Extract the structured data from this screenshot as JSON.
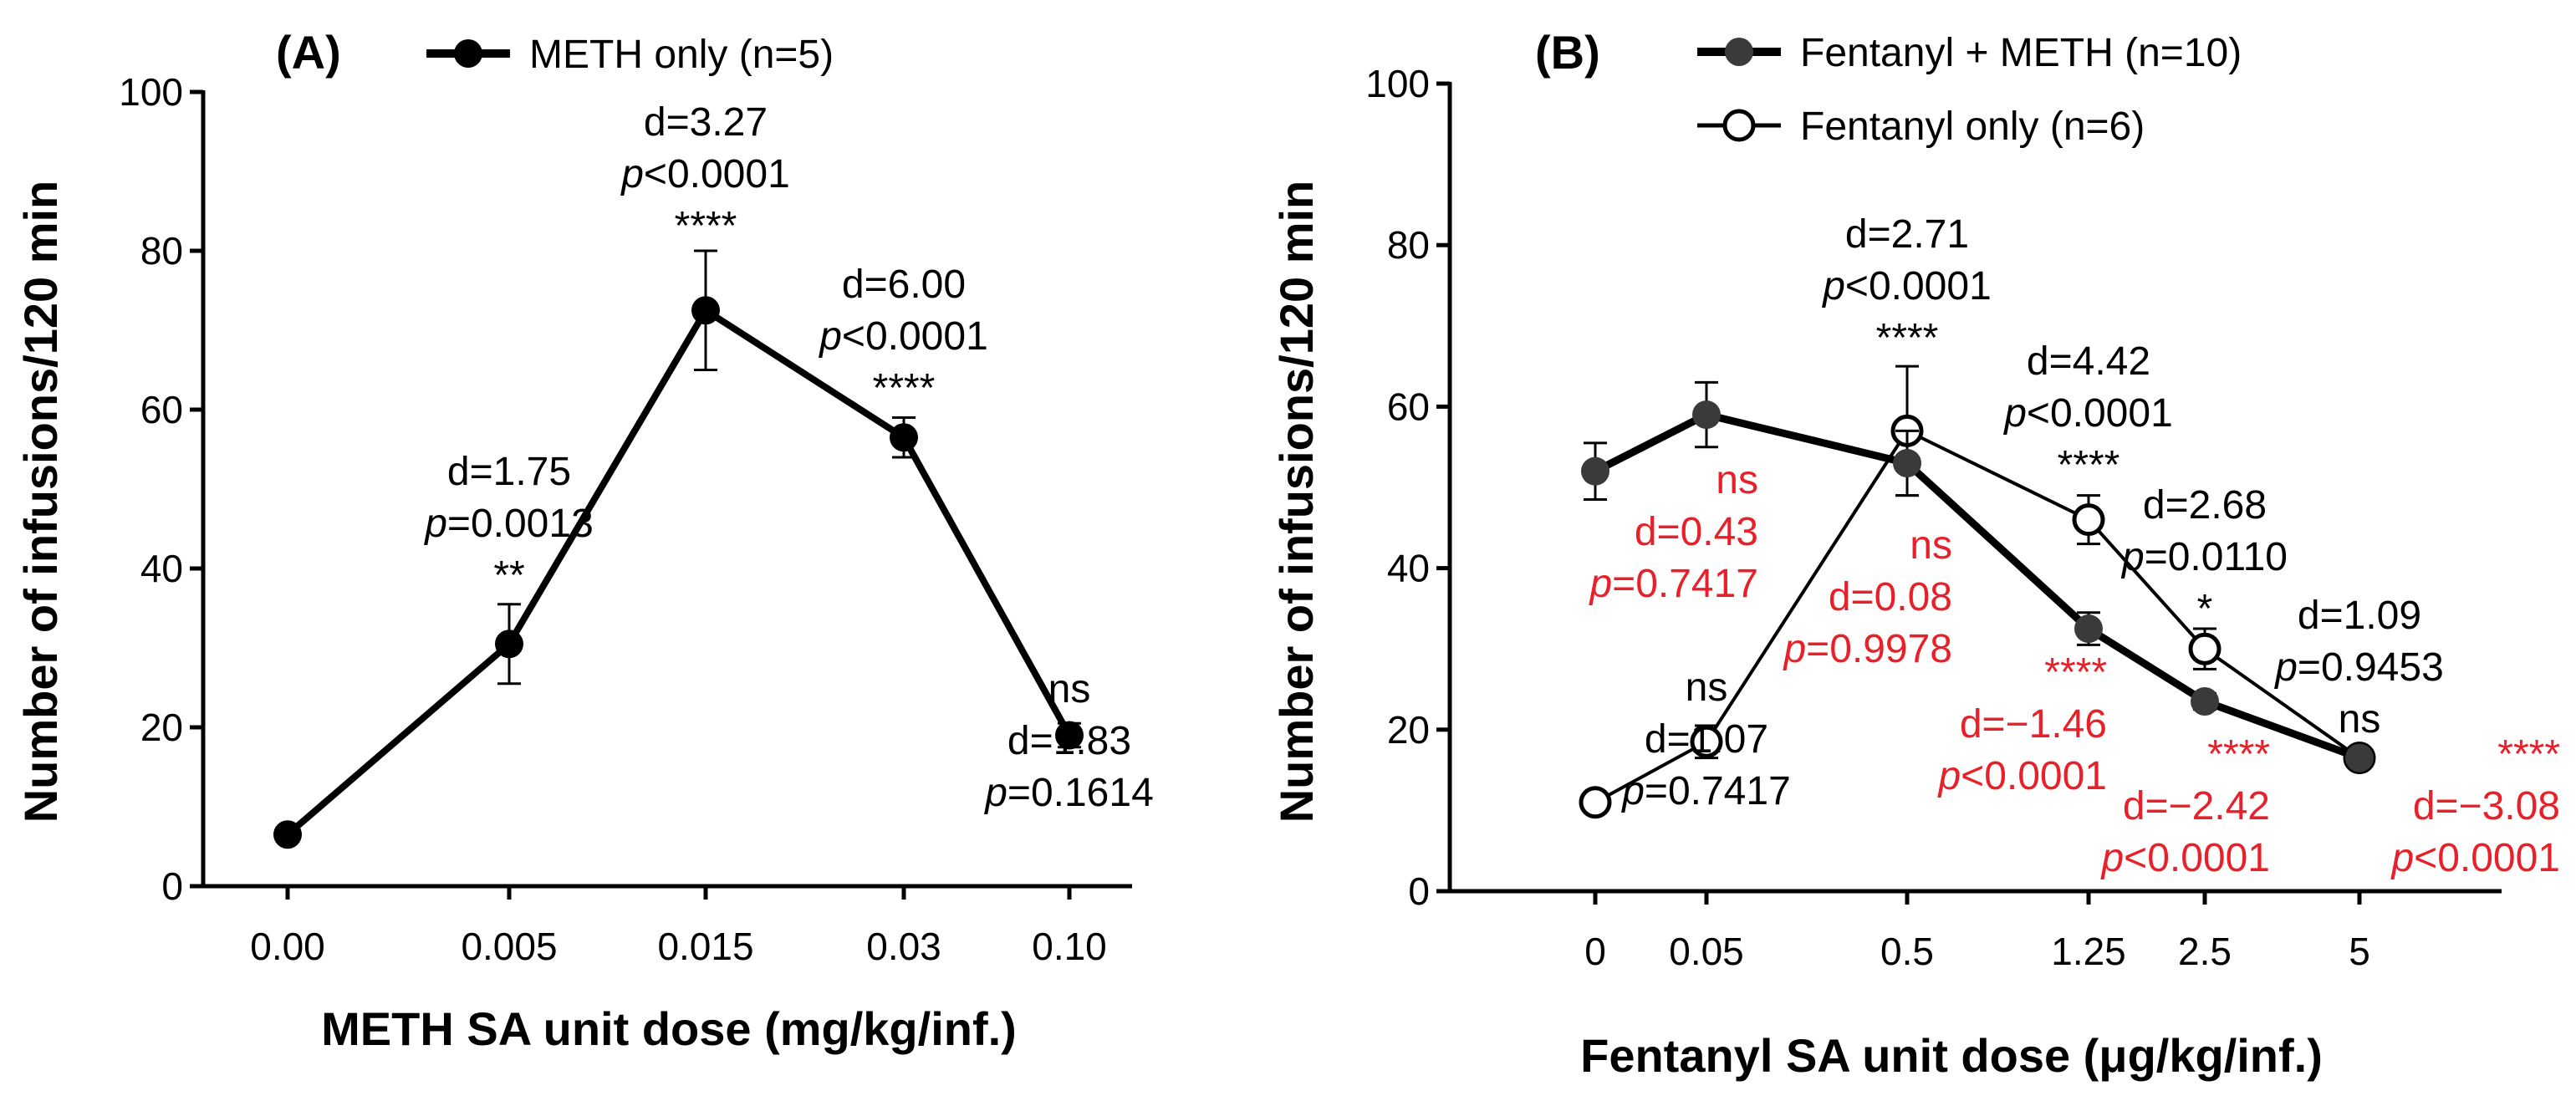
{
  "colors": {
    "black": "#000000",
    "dark_marker": "#3a3a3a",
    "red_annotation": "#e8202a"
  },
  "chart_data": [
    {
      "panel": "(A)",
      "type": "line",
      "xlabel": "METH SA unit dose (mg/kg/inf.)",
      "ylabel": "Number of infusions/120 min",
      "ylim": [
        0,
        100
      ],
      "yticks": [
        "0",
        "20",
        "40",
        "60",
        "80",
        "100"
      ],
      "categories": [
        "0.00",
        "0.005",
        "0.015",
        "0.03",
        "0.10"
      ],
      "legend_position": "top",
      "series": [
        {
          "name": "METH only (n=5)",
          "marker": "filled-circle",
          "values": [
            6.5,
            30.5,
            72.5,
            56.5,
            19
          ],
          "errors": [
            0,
            5,
            7.5,
            2.5,
            1.5
          ]
        }
      ],
      "annotations": [
        {
          "category": "0.005",
          "lines": [
            {
              "d": "d=1.75"
            },
            {
              "p": "p",
              "v": "=0.0013"
            },
            {
              "s": "**"
            }
          ],
          "color": "black"
        },
        {
          "category": "0.015",
          "lines": [
            {
              "d": "d=3.27"
            },
            {
              "p": "p",
              "v": "<0.0001"
            },
            {
              "s": "****"
            }
          ],
          "color": "black"
        },
        {
          "category": "0.03",
          "lines": [
            {
              "d": "d=6.00"
            },
            {
              "p": "p",
              "v": "<0.0001"
            },
            {
              "s": "****"
            }
          ],
          "color": "black"
        },
        {
          "category": "0.10",
          "lines": [
            {
              "s": "ns"
            },
            {
              "d": "d=1.83"
            },
            {
              "p": "p",
              "v": "=0.1614"
            }
          ],
          "color": "black"
        }
      ]
    },
    {
      "panel": "(B)",
      "type": "line",
      "xlabel": "Fentanyl SA unit dose (μg/kg/inf.)",
      "ylabel": "Number of infusions/120 min",
      "ylim": [
        0,
        100
      ],
      "yticks": [
        "0",
        "20",
        "40",
        "60",
        "80",
        "100"
      ],
      "categories": [
        "0",
        "0.05",
        "0.5",
        "1.25",
        "2.5",
        "5"
      ],
      "legend_position": "top",
      "series": [
        {
          "name": "Fentanyl + METH (n=10)",
          "marker": "filled-circle",
          "values": [
            52,
            59,
            53,
            32.5,
            23.5,
            16.5
          ],
          "errors": [
            3.5,
            4,
            4,
            2,
            1,
            1
          ]
        },
        {
          "name": "Fentanyl only (n=6)",
          "marker": "open-circle",
          "values": [
            11,
            18.5,
            57,
            46,
            30,
            16.5
          ],
          "errors": [
            1,
            2,
            8,
            3,
            2.5,
            1
          ]
        }
      ],
      "annotations_black": [
        {
          "category": "0.05",
          "lines": [
            {
              "s": "ns"
            },
            {
              "d": "d=1.07"
            },
            {
              "p": "p",
              "v": "=0.7417"
            }
          ]
        },
        {
          "category": "0.5",
          "lines": [
            {
              "d": "d=2.71"
            },
            {
              "p": "p",
              "v": "<0.0001"
            },
            {
              "s": "****"
            }
          ]
        },
        {
          "category": "1.25",
          "lines": [
            {
              "d": "d=4.42"
            },
            {
              "p": "p",
              "v": "<0.0001"
            },
            {
              "s": "****"
            }
          ]
        },
        {
          "category": "2.5",
          "lines": [
            {
              "d": "d=2.68"
            },
            {
              "p": "p",
              "v": "=0.0110"
            },
            {
              "s": "*"
            }
          ]
        },
        {
          "category": "5",
          "lines": [
            {
              "d": "d=1.09"
            },
            {
              "p": "p",
              "v": "=0.9453"
            },
            {
              "s": "ns"
            }
          ]
        }
      ],
      "annotations_red": [
        {
          "category": "0.05",
          "lines": [
            {
              "s": "ns"
            },
            {
              "d": "d=0.43"
            },
            {
              "p": "p",
              "v": "=0.7417"
            }
          ]
        },
        {
          "category": "0.5",
          "lines": [
            {
              "s": "ns"
            },
            {
              "d": "d=0.08"
            },
            {
              "p": "p",
              "v": "=0.9978"
            }
          ]
        },
        {
          "category": "1.25",
          "lines": [
            {
              "s": "****"
            },
            {
              "d": "d=−1.46"
            },
            {
              "p": "p",
              "v": "<0.0001"
            }
          ]
        },
        {
          "category": "2.5",
          "lines": [
            {
              "s": "****"
            },
            {
              "d": "d=−2.42"
            },
            {
              "p": "p",
              "v": "<0.0001"
            }
          ]
        },
        {
          "category": "5",
          "lines": [
            {
              "s": "****"
            },
            {
              "d": "d=−3.08"
            },
            {
              "p": "p",
              "v": "<0.0001"
            }
          ]
        }
      ]
    }
  ]
}
